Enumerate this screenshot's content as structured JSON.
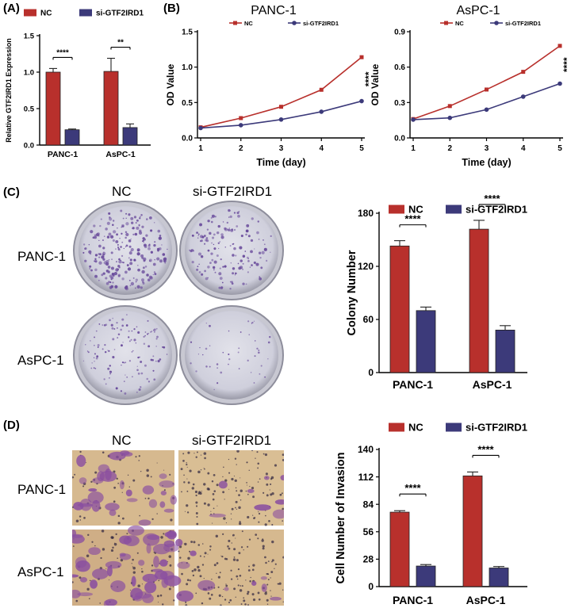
{
  "panels": {
    "A": {
      "letter": "(A)"
    },
    "B": {
      "letter": "(B)"
    },
    "C": {
      "letter": "(C)"
    },
    "D": {
      "letter": "(D)"
    }
  },
  "colors": {
    "nc": "#b8302c",
    "si": "#3c3a7a",
    "stain": "#6a4c9c",
    "dish_bg": "#d4d4e0",
    "tissue_bg": "#d2b48c"
  },
  "images": {
    "col_labels": [
      "NC",
      "si-GTF2IRD1"
    ],
    "row_labels": [
      "PANC-1",
      "AsPC-1"
    ]
  },
  "chart_data": [
    {
      "id": "A",
      "type": "bar",
      "legend": [
        "NC",
        "si-GTF2IRD1"
      ],
      "categories": [
        "PANC-1",
        "AsPC-1"
      ],
      "series": [
        {
          "name": "NC",
          "values": [
            1.0,
            1.01
          ],
          "err": [
            0.05,
            0.18
          ]
        },
        {
          "name": "si-GTF2IRD1",
          "values": [
            0.21,
            0.24
          ],
          "err": [
            0.01,
            0.05
          ]
        }
      ],
      "ylabel": "Relative GTF2IRD1 Expression",
      "ylim": [
        0,
        1.5
      ],
      "yticks": [
        0.0,
        0.5,
        1.0,
        1.5
      ],
      "ytick_labels": [
        "0.0",
        "0.5",
        "1.0",
        "1.5"
      ],
      "significance": [
        "****",
        "**"
      ]
    },
    {
      "id": "B1",
      "type": "line",
      "title": "PANC-1",
      "legend": [
        "NC",
        "si-GTF2IRD1"
      ],
      "x": [
        1,
        2,
        3,
        4,
        5
      ],
      "series": [
        {
          "name": "NC",
          "values": [
            0.15,
            0.28,
            0.44,
            0.68,
            1.14
          ]
        },
        {
          "name": "si-GTF2IRD1",
          "values": [
            0.14,
            0.18,
            0.26,
            0.37,
            0.52
          ]
        }
      ],
      "xlabel": "Time (day)",
      "ylabel": "OD Value",
      "ylim": [
        0,
        1.5
      ],
      "yticks": [
        0.0,
        0.5,
        1.0,
        1.5
      ],
      "ytick_labels": [
        "0.0",
        "0.5",
        "1.0",
        "1.5"
      ],
      "xtick_labels": [
        "1",
        "2",
        "3",
        "4",
        "5"
      ],
      "significance": "****"
    },
    {
      "id": "B2",
      "type": "line",
      "title": "AsPC-1",
      "legend": [
        "NC",
        "si-GTF2IRD1"
      ],
      "x": [
        1,
        2,
        3,
        4,
        5
      ],
      "series": [
        {
          "name": "NC",
          "values": [
            0.16,
            0.27,
            0.41,
            0.56,
            0.78
          ]
        },
        {
          "name": "si-GTF2IRD1",
          "values": [
            0.155,
            0.17,
            0.24,
            0.35,
            0.46
          ]
        }
      ],
      "xlabel": "Time (day)",
      "ylabel": "OD Value",
      "ylim": [
        0,
        0.9
      ],
      "yticks": [
        0.0,
        0.3,
        0.6,
        0.9
      ],
      "ytick_labels": [
        "0.0",
        "0.3",
        "0.6",
        "0.9"
      ],
      "xtick_labels": [
        "1",
        "2",
        "3",
        "4",
        "5"
      ],
      "significance": "****"
    },
    {
      "id": "C",
      "type": "bar",
      "legend": [
        "NC",
        "si-GTF2IRD1"
      ],
      "categories": [
        "PANC-1",
        "AsPC-1"
      ],
      "series": [
        {
          "name": "NC",
          "values": [
            143,
            162
          ],
          "err": [
            6,
            10
          ]
        },
        {
          "name": "si-GTF2IRD1",
          "values": [
            70,
            48
          ],
          "err": [
            4,
            5
          ]
        }
      ],
      "ylabel": "Colony Number",
      "ylim": [
        0,
        180
      ],
      "yticks": [
        0,
        60,
        120,
        180
      ],
      "ytick_labels": [
        "0",
        "60",
        "120",
        "180"
      ],
      "significance": [
        "****",
        "****"
      ]
    },
    {
      "id": "D",
      "type": "bar",
      "legend": [
        "NC",
        "si-GTF2IRD1"
      ],
      "categories": [
        "PANC-1",
        "AsPC-1"
      ],
      "series": [
        {
          "name": "NC",
          "values": [
            76,
            113
          ],
          "err": [
            1.5,
            4
          ]
        },
        {
          "name": "si-GTF2IRD1",
          "values": [
            21,
            19
          ],
          "err": [
            1.5,
            1.5
          ]
        }
      ],
      "ylabel": "Cell Number of Invasion",
      "ylim": [
        0,
        140
      ],
      "yticks": [
        0,
        28,
        56,
        84,
        112,
        140
      ],
      "ytick_labels": [
        "0",
        "28",
        "56",
        "84",
        "112",
        "140"
      ],
      "significance": [
        "****",
        "****"
      ]
    }
  ]
}
